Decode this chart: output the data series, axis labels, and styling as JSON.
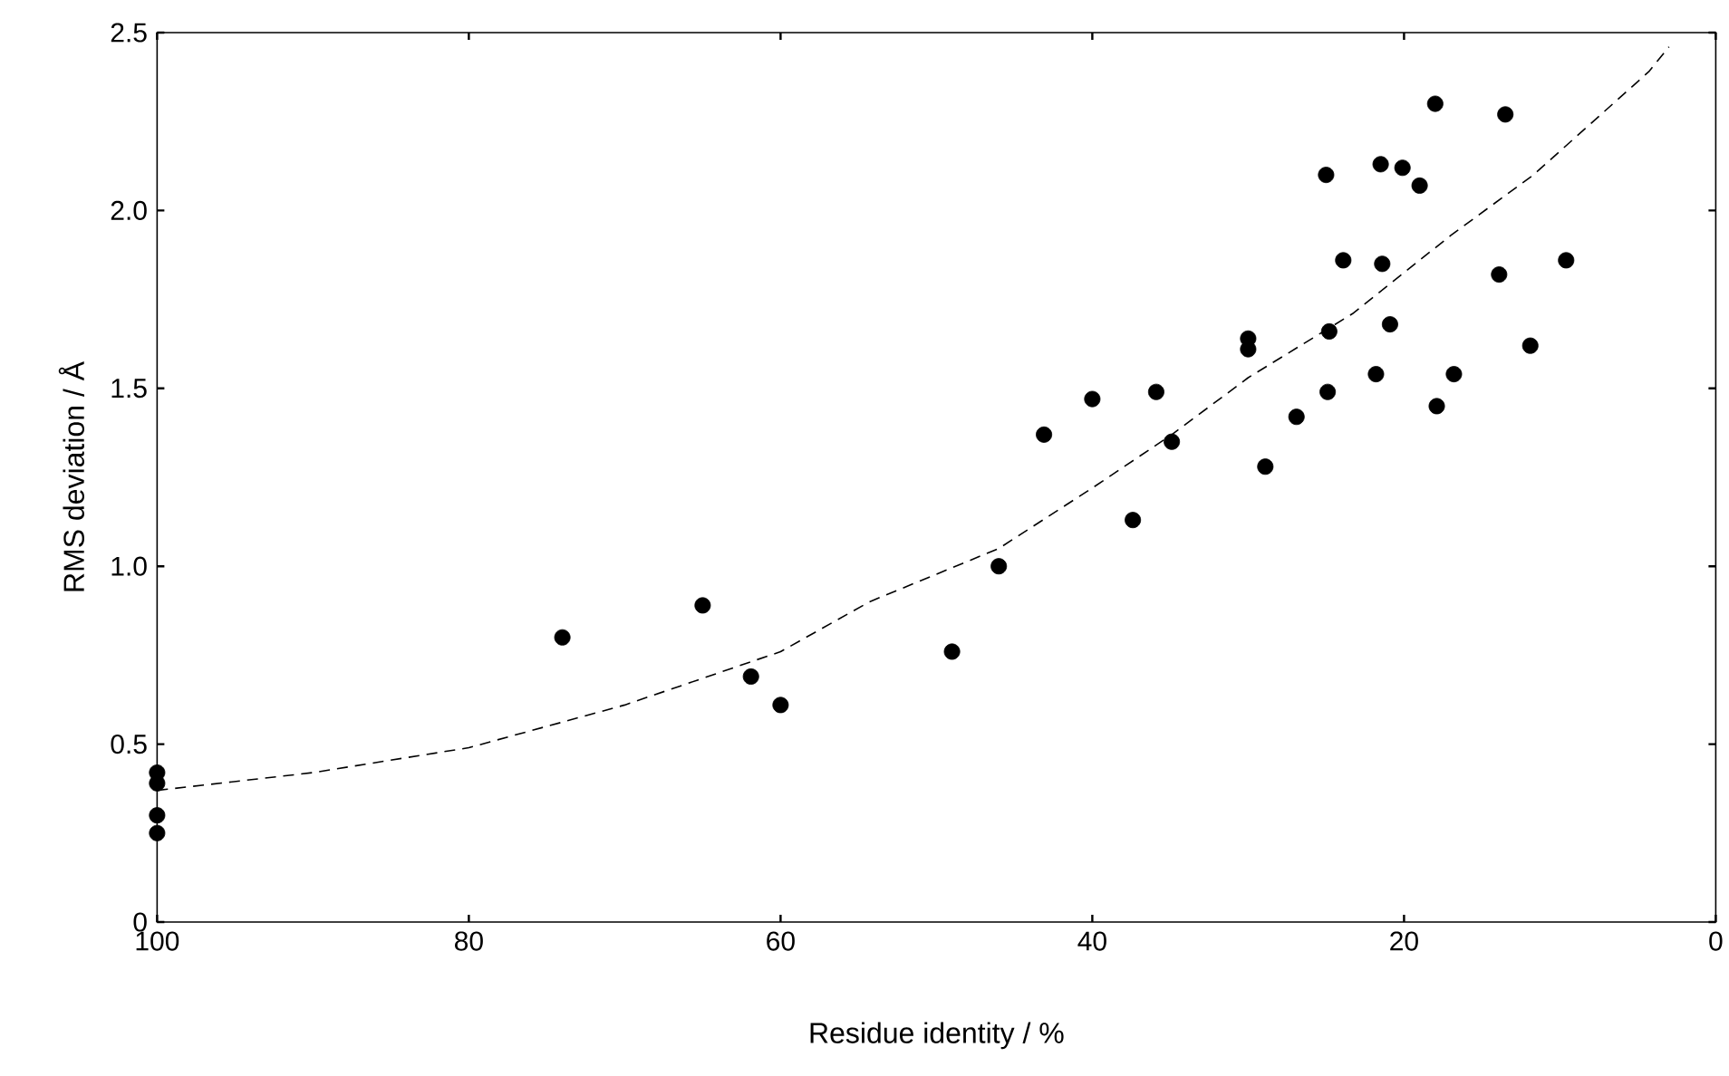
{
  "chart_data": {
    "type": "scatter",
    "xlabel": "Residue identity / %",
    "ylabel": "RMS deviation / Å",
    "xlim": [
      100,
      0
    ],
    "ylim": [
      0,
      2.5
    ],
    "xticks": [
      100,
      80,
      60,
      40,
      20,
      0
    ],
    "yticks": [
      0,
      0.5,
      {
        "value": 1,
        "label": "1.0"
      },
      1.5,
      {
        "value": 2,
        "label": "2.0"
      },
      2.5
    ],
    "grid": false,
    "series": [
      {
        "marker": "circle",
        "color": "#000000",
        "x": [
          100,
          100,
          100,
          100,
          74.0,
          65.0,
          61.9,
          60.0,
          49.0,
          46.0,
          43.1,
          40.0,
          37.4,
          35.9,
          34.9,
          30.0,
          30.0,
          28.9,
          26.9,
          25.0,
          24.9,
          24.8,
          23.9,
          21.8,
          21.5,
          21.4,
          20.9,
          20.1,
          19.0,
          18.0,
          17.9,
          16.8,
          13.9,
          13.5,
          11.9,
          9.6
        ],
        "values": [
          0.42,
          0.39,
          0.3,
          0.25,
          0.8,
          0.89,
          0.69,
          0.61,
          0.76,
          1.0,
          1.37,
          1.47,
          1.13,
          1.49,
          1.35,
          1.64,
          1.61,
          1.28,
          1.42,
          2.1,
          1.49,
          1.66,
          1.86,
          1.54,
          2.13,
          1.85,
          1.68,
          2.12,
          2.07,
          2.3,
          1.45,
          1.54,
          1.82,
          2.27,
          1.62,
          1.86
        ]
      },
      {
        "type": "line",
        "marker": "none",
        "line_style": "dashed",
        "color": "#000000",
        "x": [
          100,
          90,
          80,
          70,
          60,
          54.3,
          46,
          40,
          34.9,
          30,
          23.3,
          17,
          11.7,
          4.3,
          3
        ],
        "values": [
          0.37,
          0.42,
          0.49,
          0.61,
          0.76,
          0.9,
          1.05,
          1.22,
          1.37,
          1.53,
          1.71,
          1.93,
          2.1,
          2.39,
          2.46
        ]
      }
    ]
  }
}
